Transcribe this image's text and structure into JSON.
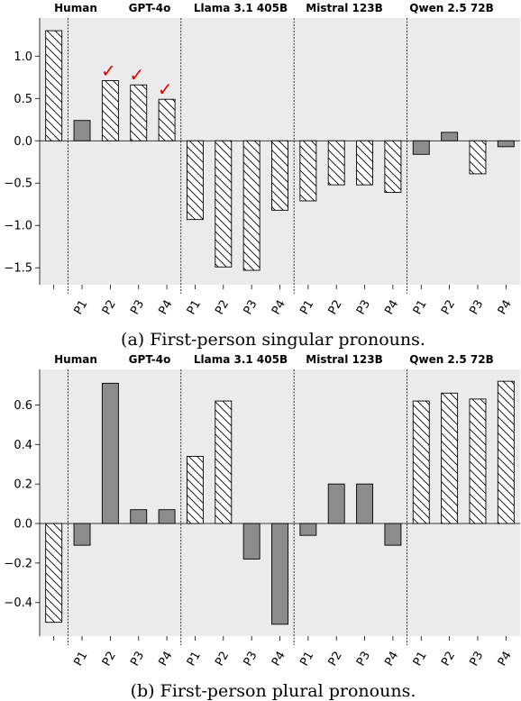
{
  "chart_data": [
    {
      "type": "bar",
      "caption": "(a) First-person singular pronouns.",
      "groups": [
        "Human",
        "GPT-4o",
        "Llama 3.1 405B",
        "Mistral 123B",
        "Qwen 2.5 72B"
      ],
      "x_tick_labels": [
        "",
        "P1",
        "P2",
        "P3",
        "P4",
        "P1",
        "P2",
        "P3",
        "P4",
        "P1",
        "P2",
        "P3",
        "P4",
        "P1",
        "P2",
        "P3",
        "P4"
      ],
      "bars": [
        {
          "group": "Human",
          "label": "",
          "value": 1.3,
          "hatched": true
        },
        {
          "group": "GPT-4o",
          "label": "P1",
          "value": 0.24,
          "hatched": false
        },
        {
          "group": "GPT-4o",
          "label": "P2",
          "value": 0.71,
          "hatched": true,
          "check": true
        },
        {
          "group": "GPT-4o",
          "label": "P3",
          "value": 0.66,
          "hatched": true,
          "check": true
        },
        {
          "group": "GPT-4o",
          "label": "P4",
          "value": 0.49,
          "hatched": true,
          "check": true
        },
        {
          "group": "Llama 3.1 405B",
          "label": "P1",
          "value": -0.93,
          "hatched": true
        },
        {
          "group": "Llama 3.1 405B",
          "label": "P2",
          "value": -1.49,
          "hatched": true
        },
        {
          "group": "Llama 3.1 405B",
          "label": "P3",
          "value": -1.53,
          "hatched": true
        },
        {
          "group": "Llama 3.1 405B",
          "label": "P4",
          "value": -0.82,
          "hatched": true
        },
        {
          "group": "Mistral 123B",
          "label": "P1",
          "value": -0.71,
          "hatched": true
        },
        {
          "group": "Mistral 123B",
          "label": "P2",
          "value": -0.52,
          "hatched": true
        },
        {
          "group": "Mistral 123B",
          "label": "P3",
          "value": -0.52,
          "hatched": true
        },
        {
          "group": "Mistral 123B",
          "label": "P4",
          "value": -0.61,
          "hatched": true
        },
        {
          "group": "Qwen 2.5 72B",
          "label": "P1",
          "value": -0.16,
          "hatched": false
        },
        {
          "group": "Qwen 2.5 72B",
          "label": "P2",
          "value": 0.1,
          "hatched": false
        },
        {
          "group": "Qwen 2.5 72B",
          "label": "P3",
          "value": -0.39,
          "hatched": true
        },
        {
          "group": "Qwen 2.5 72B",
          "label": "P4",
          "value": -0.07,
          "hatched": false
        }
      ],
      "yticks": [
        1.0,
        0.5,
        0.0,
        -0.5,
        -1.0,
        -1.5
      ],
      "ytick_labels": [
        "1.0",
        "0.5",
        "0.0",
        "−0.5",
        "−1.0",
        "−1.5"
      ],
      "ylim": [
        -1.7,
        1.45
      ],
      "check_mark": "✓",
      "colors": {
        "solid": "#8c8c8c",
        "hatched_fill": "#ffffff",
        "check": "#e00000",
        "background": "#ebebeb"
      },
      "grid": false
    },
    {
      "type": "bar",
      "caption": "(b) First-person plural pronouns.",
      "groups": [
        "Human",
        "GPT-4o",
        "Llama 3.1 405B",
        "Mistral 123B",
        "Qwen 2.5 72B"
      ],
      "x_tick_labels": [
        "",
        "P1",
        "P2",
        "P3",
        "P4",
        "P1",
        "P2",
        "P3",
        "P4",
        "P1",
        "P2",
        "P3",
        "P4",
        "P1",
        "P2",
        "P3",
        "P4"
      ],
      "bars": [
        {
          "group": "Human",
          "label": "",
          "value": -0.5,
          "hatched": true
        },
        {
          "group": "GPT-4o",
          "label": "P1",
          "value": -0.11,
          "hatched": false
        },
        {
          "group": "GPT-4o",
          "label": "P2",
          "value": 0.71,
          "hatched": false
        },
        {
          "group": "GPT-4o",
          "label": "P3",
          "value": 0.07,
          "hatched": false
        },
        {
          "group": "GPT-4o",
          "label": "P4",
          "value": 0.07,
          "hatched": false
        },
        {
          "group": "Llama 3.1 405B",
          "label": "P1",
          "value": 0.34,
          "hatched": true
        },
        {
          "group": "Llama 3.1 405B",
          "label": "P2",
          "value": 0.62,
          "hatched": true
        },
        {
          "group": "Llama 3.1 405B",
          "label": "P3",
          "value": -0.18,
          "hatched": false
        },
        {
          "group": "Llama 3.1 405B",
          "label": "P4",
          "value": -0.51,
          "hatched": false
        },
        {
          "group": "Mistral 123B",
          "label": "P1",
          "value": -0.06,
          "hatched": false
        },
        {
          "group": "Mistral 123B",
          "label": "P2",
          "value": 0.2,
          "hatched": false
        },
        {
          "group": "Mistral 123B",
          "label": "P3",
          "value": 0.2,
          "hatched": false
        },
        {
          "group": "Mistral 123B",
          "label": "P4",
          "value": -0.11,
          "hatched": false
        },
        {
          "group": "Qwen 2.5 72B",
          "label": "P1",
          "value": 0.62,
          "hatched": true
        },
        {
          "group": "Qwen 2.5 72B",
          "label": "P2",
          "value": 0.66,
          "hatched": true
        },
        {
          "group": "Qwen 2.5 72B",
          "label": "P3",
          "value": 0.63,
          "hatched": true
        },
        {
          "group": "Qwen 2.5 72B",
          "label": "P4",
          "value": 0.72,
          "hatched": true
        }
      ],
      "yticks": [
        0.6,
        0.4,
        0.2,
        0.0,
        -0.2,
        -0.4
      ],
      "ytick_labels": [
        "0.6",
        "0.4",
        "0.2",
        "0.0",
        "−0.2",
        "−0.4"
      ],
      "ylim": [
        -0.57,
        0.78
      ],
      "colors": {
        "solid": "#8c8c8c",
        "hatched_fill": "#ffffff",
        "background": "#ebebeb"
      },
      "grid": false
    }
  ]
}
